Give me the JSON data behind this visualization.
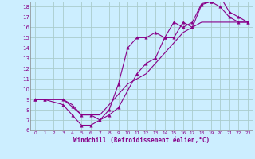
{
  "xlabel": "Windchill (Refroidissement éolien,°C)",
  "bg_color": "#cceeff",
  "grid_color": "#aacccc",
  "line_color": "#880088",
  "xlim": [
    -0.5,
    23.5
  ],
  "ylim": [
    6,
    18.5
  ],
  "xticks": [
    0,
    1,
    2,
    3,
    4,
    5,
    6,
    7,
    8,
    9,
    10,
    11,
    12,
    13,
    14,
    15,
    16,
    17,
    18,
    19,
    20,
    21,
    22,
    23
  ],
  "yticks": [
    6,
    7,
    8,
    9,
    10,
    11,
    12,
    13,
    14,
    15,
    16,
    17,
    18
  ],
  "curve1_x": [
    0,
    1,
    3,
    4,
    5,
    6,
    7,
    8,
    9,
    11,
    12,
    13,
    14,
    15,
    16,
    17,
    18,
    19,
    20,
    21,
    22,
    23
  ],
  "curve1_y": [
    9,
    9,
    8.5,
    7.5,
    6.5,
    6.5,
    7.0,
    7.5,
    8.2,
    11.5,
    12.5,
    13.0,
    15.0,
    15.0,
    16.5,
    16.0,
    18.2,
    18.5,
    18.0,
    17.0,
    16.5,
    16.5
  ],
  "curve2_x": [
    0,
    1,
    3,
    4,
    5,
    6,
    7,
    8,
    9,
    10,
    11,
    12,
    13,
    14,
    15,
    16,
    17,
    18,
    19,
    20,
    21,
    22,
    23
  ],
  "curve2_y": [
    9,
    9,
    9.0,
    8.3,
    7.5,
    7.5,
    7.0,
    8.0,
    10.5,
    14.0,
    15.0,
    15.0,
    15.5,
    15.0,
    16.5,
    16.0,
    16.5,
    18.3,
    18.5,
    19.0,
    17.5,
    17.0,
    16.5
  ],
  "curve3_x": [
    0,
    1,
    2,
    3,
    4,
    5,
    6,
    7,
    8,
    9,
    10,
    11,
    12,
    13,
    14,
    15,
    16,
    17,
    18,
    19,
    20,
    21,
    22,
    23
  ],
  "curve3_y": [
    9,
    9,
    9,
    9,
    8.5,
    7.5,
    7.5,
    7.5,
    8.5,
    9.5,
    10.5,
    11.0,
    11.5,
    12.5,
    13.5,
    14.5,
    15.5,
    16.0,
    16.5,
    16.5,
    16.5,
    16.5,
    16.5,
    16.5
  ]
}
